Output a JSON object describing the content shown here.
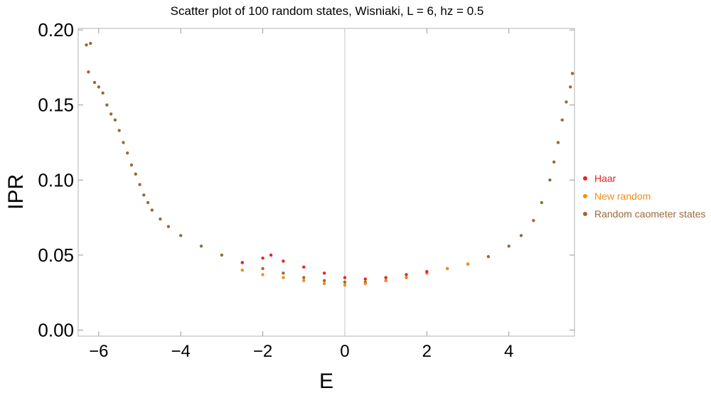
{
  "chart_data": {
    "type": "scatter",
    "title": "Scatter plot of 100 random states, Wisniaki, L = 6, hz = 0.5",
    "xlabel": "E",
    "ylabel": "IPR",
    "xlim": [
      -6.5,
      5.6
    ],
    "ylim": [
      -0.004,
      0.201
    ],
    "x_ticks": [
      -6,
      -4,
      -2,
      0,
      2,
      4
    ],
    "x_tick_labels": [
      "−6",
      "−4",
      "−2",
      "0",
      "2",
      "4"
    ],
    "y_ticks": [
      0.0,
      0.05,
      0.1,
      0.15,
      0.2
    ],
    "y_tick_labels": [
      "0.00",
      "0.05",
      "0.10",
      "0.15",
      "0.20"
    ],
    "grid": false,
    "vertical_reference_line_x": 0,
    "legend_position": "right",
    "series": [
      {
        "name": "Random caometer states",
        "color": "#9a6a35",
        "points": [
          [
            -6.3,
            0.19
          ],
          [
            -6.2,
            0.191
          ],
          [
            -6.25,
            0.172
          ],
          [
            -6.1,
            0.165
          ],
          [
            -6.0,
            0.162
          ],
          [
            -5.9,
            0.158
          ],
          [
            -5.8,
            0.15
          ],
          [
            -5.7,
            0.144
          ],
          [
            -5.6,
            0.14
          ],
          [
            -5.5,
            0.133
          ],
          [
            -5.4,
            0.125
          ],
          [
            -5.3,
            0.118
          ],
          [
            -5.2,
            0.11
          ],
          [
            -5.1,
            0.104
          ],
          [
            -5.0,
            0.097
          ],
          [
            -4.9,
            0.09
          ],
          [
            -4.8,
            0.085
          ],
          [
            -4.7,
            0.08
          ],
          [
            -4.5,
            0.074
          ],
          [
            -4.3,
            0.069
          ],
          [
            -4.0,
            0.063
          ],
          [
            -3.5,
            0.056
          ],
          [
            -3.0,
            0.05
          ],
          [
            -2.5,
            0.045
          ],
          [
            -2.0,
            0.041
          ],
          [
            -1.5,
            0.038
          ],
          [
            -1.0,
            0.035
          ],
          [
            -0.5,
            0.033
          ],
          [
            0.0,
            0.032
          ],
          [
            0.5,
            0.032
          ],
          [
            1.0,
            0.033
          ],
          [
            1.5,
            0.035
          ],
          [
            2.0,
            0.038
          ],
          [
            2.5,
            0.041
          ],
          [
            3.0,
            0.044
          ],
          [
            3.5,
            0.049
          ],
          [
            4.0,
            0.056
          ],
          [
            4.3,
            0.063
          ],
          [
            4.6,
            0.073
          ],
          [
            4.8,
            0.085
          ],
          [
            5.0,
            0.1
          ],
          [
            5.1,
            0.112
          ],
          [
            5.2,
            0.125
          ],
          [
            5.3,
            0.14
          ],
          [
            5.4,
            0.152
          ],
          [
            5.5,
            0.162
          ],
          [
            5.55,
            0.171
          ]
        ]
      },
      {
        "name": "New random",
        "color": "#f58c1a",
        "points": [
          [
            -2.5,
            0.04
          ],
          [
            -2.0,
            0.037
          ],
          [
            -1.5,
            0.035
          ],
          [
            -1.0,
            0.033
          ],
          [
            -0.5,
            0.031
          ],
          [
            0.0,
            0.03
          ],
          [
            0.5,
            0.031
          ],
          [
            1.0,
            0.033
          ],
          [
            1.5,
            0.035
          ],
          [
            2.0,
            0.038
          ],
          [
            2.5,
            0.041
          ],
          [
            3.0,
            0.044
          ]
        ]
      },
      {
        "name": "Haar",
        "color": "#e8231e",
        "points": [
          [
            -2.5,
            0.045
          ],
          [
            -2.0,
            0.048
          ],
          [
            -1.8,
            0.05
          ],
          [
            -1.5,
            0.046
          ],
          [
            -1.0,
            0.042
          ],
          [
            -0.5,
            0.038
          ],
          [
            0.0,
            0.035
          ],
          [
            0.5,
            0.034
          ],
          [
            1.0,
            0.035
          ],
          [
            1.5,
            0.037
          ],
          [
            2.0,
            0.039
          ]
        ]
      }
    ],
    "legend_order": [
      "Haar",
      "New random",
      "Random caometer states"
    ]
  }
}
